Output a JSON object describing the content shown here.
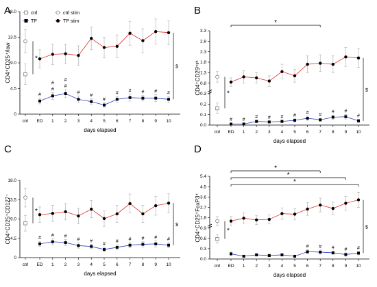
{
  "legend": [
    {
      "label": "ctrl",
      "marker": "open-square"
    },
    {
      "label": "TP",
      "marker": "filled-square"
    },
    {
      "label": "ctrl stim",
      "marker": "open-circle"
    },
    {
      "label": "TP stim",
      "marker": "filled-circle-red"
    }
  ],
  "colors": {
    "tp_stim_line": "#e0302a",
    "tp_line": "#2b3fbf",
    "errbar": "#b5b5b5",
    "marker": "#000000"
  },
  "chart_data": [
    {
      "panel": "A",
      "type": "line",
      "ylabel": "CD4⁺CD25⁺/low",
      "xlabel": "days elapsed",
      "categories": [
        "ctrl",
        "ED",
        "1",
        "2",
        "3",
        "4",
        "5",
        "6",
        "7",
        "8",
        "9",
        "10"
      ],
      "ylim": [
        0,
        18
      ],
      "yticks": [
        0,
        4.5,
        9,
        13.5,
        18
      ],
      "yticklabels": [
        "0",
        "4.5",
        "9.0",
        "13.5",
        "18.0"
      ],
      "grid": false,
      "series": [
        {
          "name": "ctrl",
          "marker": "open-square",
          "x": [
            "ctrl"
          ],
          "values": [
            7.0
          ],
          "err": [
            1.8
          ]
        },
        {
          "name": "ctrl stim",
          "marker": "open-circle",
          "x": [
            "ctrl"
          ],
          "values": [
            12.8
          ],
          "err": [
            2.0
          ]
        },
        {
          "name": "TP",
          "marker": "filled-square",
          "x": [
            "ED",
            "1",
            "2",
            "3",
            "4",
            "5",
            "6",
            "7",
            "8",
            "9",
            "10"
          ],
          "values": [
            2.3,
            3.2,
            3.6,
            2.6,
            2.2,
            1.6,
            2.6,
            2.9,
            2.8,
            2.8,
            2.6
          ],
          "err": [
            0.5,
            0.6,
            0.7,
            0.6,
            0.5,
            0.4,
            0.5,
            0.6,
            0.5,
            0.6,
            0.5
          ]
        },
        {
          "name": "TP stim",
          "marker": "filled-circle",
          "x": [
            "ED",
            "1",
            "2",
            "3",
            "4",
            "5",
            "6",
            "7",
            "8",
            "9",
            "10"
          ],
          "values": [
            9.7,
            10.5,
            10.6,
            10.3,
            13.3,
            11.7,
            11.9,
            14.2,
            12.9,
            14.5,
            14.3
          ],
          "err": [
            1.6,
            1.8,
            1.7,
            1.7,
            2.0,
            1.8,
            2.0,
            2.1,
            2.1,
            2.2,
            2.1
          ]
        }
      ],
      "annotations": {
        "hash": [
          "ED",
          "1",
          "2",
          "3",
          "4",
          "5",
          "6",
          "7",
          "8",
          "9",
          "10"
        ],
        "hash_symbol": "#",
        "extra_hash_above": [
          "1",
          "2"
        ],
        "star_left": "*",
        "dollar_right": "$",
        "brackets": []
      }
    },
    {
      "panel": "B",
      "type": "line",
      "ylabel": "CD4⁺CD25ʰⁱᵍʰ",
      "xlabel": "days elapsed",
      "categories": [
        "ctrl",
        "ED",
        "1",
        "2",
        "3",
        "4",
        "5",
        "6",
        "7",
        "8",
        "9",
        "10"
      ],
      "ylim": [
        0,
        3.3
      ],
      "yticks": [
        0,
        0.1,
        0.2,
        0.3,
        0.8,
        1.3,
        1.8,
        2.3,
        2.8,
        3.3
      ],
      "yticklabels": [
        "0.0",
        "0.1",
        "0.2",
        "0.3",
        "0.8",
        "1.3",
        "1.8",
        "2.3",
        "2.8",
        "3.3"
      ],
      "broken_axis": true,
      "grid": false,
      "series": [
        {
          "name": "ctrl",
          "marker": "open-square",
          "x": [
            "ctrl"
          ],
          "values": [
            0.16
          ],
          "err": [
            0.05
          ]
        },
        {
          "name": "ctrl stim",
          "marker": "open-circle",
          "x": [
            "ctrl"
          ],
          "values": [
            1.1
          ],
          "err": [
            0.25
          ]
        },
        {
          "name": "TP",
          "marker": "filled-square",
          "x": [
            "ED",
            "1",
            "2",
            "3",
            "4",
            "5",
            "6",
            "7",
            "8",
            "9",
            "10"
          ],
          "values": [
            0.01,
            0.01,
            0.035,
            0.03,
            0.035,
            0.045,
            0.065,
            0.05,
            0.075,
            0.08,
            0.04
          ],
          "err": [
            0.01,
            0.01,
            0.012,
            0.01,
            0.012,
            0.015,
            0.02,
            0.015,
            0.02,
            0.022,
            0.015
          ]
        },
        {
          "name": "TP stim",
          "marker": "filled-circle",
          "x": [
            "ED",
            "1",
            "2",
            "3",
            "4",
            "5",
            "6",
            "7",
            "8",
            "9",
            "10"
          ],
          "values": [
            0.85,
            1.1,
            1.05,
            0.9,
            1.35,
            1.15,
            1.7,
            1.75,
            1.7,
            2.05,
            2.0
          ],
          "err": [
            0.2,
            0.3,
            0.25,
            0.25,
            0.35,
            0.3,
            0.4,
            0.4,
            0.4,
            0.45,
            0.45
          ]
        }
      ],
      "annotations": {
        "hash": [
          "ED",
          "1",
          "2",
          "3",
          "4",
          "5",
          "6",
          "7",
          "8",
          "9",
          "10"
        ],
        "hash_symbol": "#",
        "extra_hash_above": [],
        "star_left": "*",
        "dollar_right": "$",
        "brackets": [
          {
            "from": "ED",
            "to": "7",
            "label": "*"
          }
        ]
      }
    },
    {
      "panel": "C",
      "type": "line",
      "ylabel": "CD4⁺CD25⁺CD127⁻",
      "xlabel": "days elapsed",
      "categories": [
        "ctrl",
        "ED",
        "1",
        "2",
        "3",
        "4",
        "5",
        "6",
        "7",
        "8",
        "9",
        "10"
      ],
      "ylim": [
        0,
        18
      ],
      "yticks": [
        0,
        4.5,
        9,
        13.5,
        18
      ],
      "yticklabels": [
        "0",
        "4.5",
        "9.0",
        "13.5",
        "18.0"
      ],
      "grid": false,
      "series": [
        {
          "name": "ctrl",
          "marker": "open-square",
          "x": [
            "ctrl"
          ],
          "values": [
            8.0
          ],
          "err": [
            1.8
          ]
        },
        {
          "name": "ctrl stim",
          "marker": "open-circle",
          "x": [
            "ctrl"
          ],
          "values": [
            14.0
          ],
          "err": [
            2.2
          ]
        },
        {
          "name": "TP",
          "marker": "filled-square",
          "x": [
            "ED",
            "1",
            "2",
            "3",
            "4",
            "5",
            "6",
            "7",
            "8",
            "9",
            "10"
          ],
          "values": [
            3.2,
            3.7,
            3.5,
            2.8,
            2.6,
            1.9,
            2.4,
            2.9,
            3.1,
            3.2,
            2.9
          ],
          "err": [
            0.6,
            0.7,
            0.7,
            0.6,
            0.5,
            0.5,
            0.6,
            0.6,
            0.6,
            0.7,
            0.6
          ]
        },
        {
          "name": "TP stim",
          "marker": "filled-circle",
          "x": [
            "ED",
            "1",
            "2",
            "3",
            "4",
            "5",
            "6",
            "7",
            "8",
            "9",
            "10"
          ],
          "values": [
            10.0,
            10.3,
            10.7,
            9.7,
            11.3,
            9.1,
            10.2,
            12.6,
            10.2,
            12.1,
            12.7
          ],
          "err": [
            1.8,
            1.9,
            1.9,
            1.8,
            2.0,
            1.8,
            2.0,
            2.2,
            2.0,
            2.2,
            2.2
          ]
        }
      ],
      "annotations": {
        "hash": [
          "ED",
          "1",
          "2",
          "3",
          "4",
          "5",
          "6",
          "7",
          "8",
          "9",
          "10"
        ],
        "hash_symbol": "#",
        "extra_hash_above": [],
        "star_left": "*",
        "dollar_right": "$",
        "brackets": []
      }
    },
    {
      "panel": "D",
      "type": "line",
      "ylabel": "CD4⁺CD25⁺FoxP3⁺",
      "xlabel": "days elapsed",
      "categories": [
        "ctrl",
        "ED",
        "1",
        "2",
        "3",
        "4",
        "5",
        "6",
        "7",
        "8",
        "9",
        "10"
      ],
      "ylim": [
        0,
        5.4
      ],
      "yticks": [
        0,
        0.3,
        0.6,
        0.9,
        1.8,
        2.7,
        3.6,
        4.5,
        5.4
      ],
      "yticklabels": [
        "0.0",
        "0.3",
        "0.6",
        "0.9",
        "1.8",
        "2.7",
        "3.6",
        "4.5",
        "5.4"
      ],
      "broken_axis": true,
      "grid": false,
      "series": [
        {
          "name": "ctrl",
          "marker": "open-square",
          "x": [
            "ctrl"
          ],
          "values": [
            0.58
          ],
          "err": [
            0.12
          ]
        },
        {
          "name": "ctrl stim",
          "marker": "open-circle",
          "x": [
            "ctrl"
          ],
          "values": [
            1.5
          ],
          "err": [
            0.4
          ]
        },
        {
          "name": "TP",
          "marker": "filled-square",
          "x": [
            "ED",
            "1",
            "2",
            "3",
            "4",
            "5",
            "6",
            "7",
            "8",
            "9",
            "10"
          ],
          "values": [
            0.15,
            0.08,
            0.12,
            0.1,
            0.12,
            0.08,
            0.21,
            0.2,
            0.18,
            0.13,
            0.17
          ],
          "err": [
            0.05,
            0.03,
            0.04,
            0.04,
            0.04,
            0.03,
            0.06,
            0.06,
            0.05,
            0.05,
            0.05
          ]
        },
        {
          "name": "TP stim",
          "marker": "filled-circle",
          "x": [
            "ED",
            "1",
            "2",
            "3",
            "4",
            "5",
            "6",
            "7",
            "8",
            "9",
            "10"
          ],
          "values": [
            1.5,
            1.75,
            1.6,
            1.65,
            2.15,
            2.1,
            2.55,
            2.9,
            2.6,
            3.05,
            3.35
          ],
          "err": [
            0.4,
            0.45,
            0.4,
            0.4,
            0.5,
            0.5,
            0.55,
            0.6,
            0.55,
            0.6,
            0.65
          ]
        }
      ],
      "annotations": {
        "hash": [
          "6",
          "7",
          "8",
          "9",
          "10"
        ],
        "hash_symbol": "#",
        "extra_hash_above": [],
        "star_left": "*",
        "dollar_right": "$",
        "brackets": [
          {
            "from": "ED",
            "to": "7",
            "label": "*"
          },
          {
            "from": "ED",
            "to": "9",
            "label": "*"
          },
          {
            "from": "ED",
            "to": "10",
            "label": "*"
          }
        ]
      }
    }
  ]
}
